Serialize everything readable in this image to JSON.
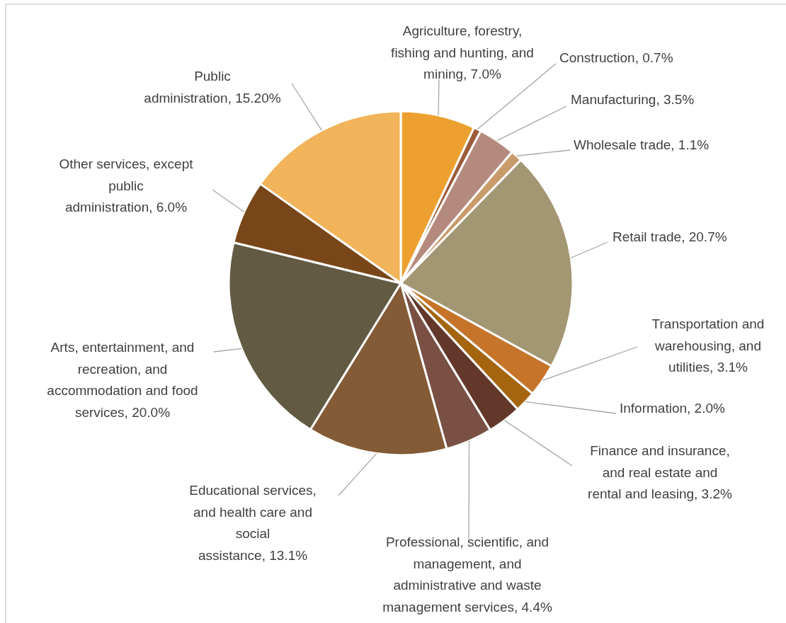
{
  "chart_data": {
    "type": "pie",
    "categories": [
      "Agriculture, forestry, fishing and hunting, and mining",
      "Construction",
      "Manufacturing",
      "Wholesale trade",
      "Retail trade",
      "Transportation and warehousing, and utilities",
      "Information",
      "Finance and insurance, and real estate and rental and leasing",
      "Professional, scientific, and management, and administrative and waste management services",
      "Educational services, and health care and social assistance",
      "Arts, entertainment, and recreation, and accommodation and food services",
      "Other services, except public administration",
      "Public administration"
    ],
    "values": [
      7.0,
      0.7,
      3.5,
      1.1,
      20.7,
      3.1,
      2.0,
      3.2,
      4.4,
      13.1,
      20.0,
      6.0,
      15.2
    ],
    "value_labels": [
      "7.0%",
      "0.7%",
      "3.5%",
      "1.1%",
      "20.7%",
      "3.1%",
      "2.0%",
      "3.2%",
      "4.4%",
      "13.1%",
      "20.0%",
      "6.0%",
      "15.20%"
    ],
    "colors": [
      "#eda02f",
      "#9c5b3a",
      "#b58a7e",
      "#c99a6a",
      "#a39672",
      "#c5742a",
      "#a5650f",
      "#63382b",
      "#7a5045",
      "#835b36",
      "#635a44",
      "#784619",
      "#f1b45a"
    ]
  }
}
